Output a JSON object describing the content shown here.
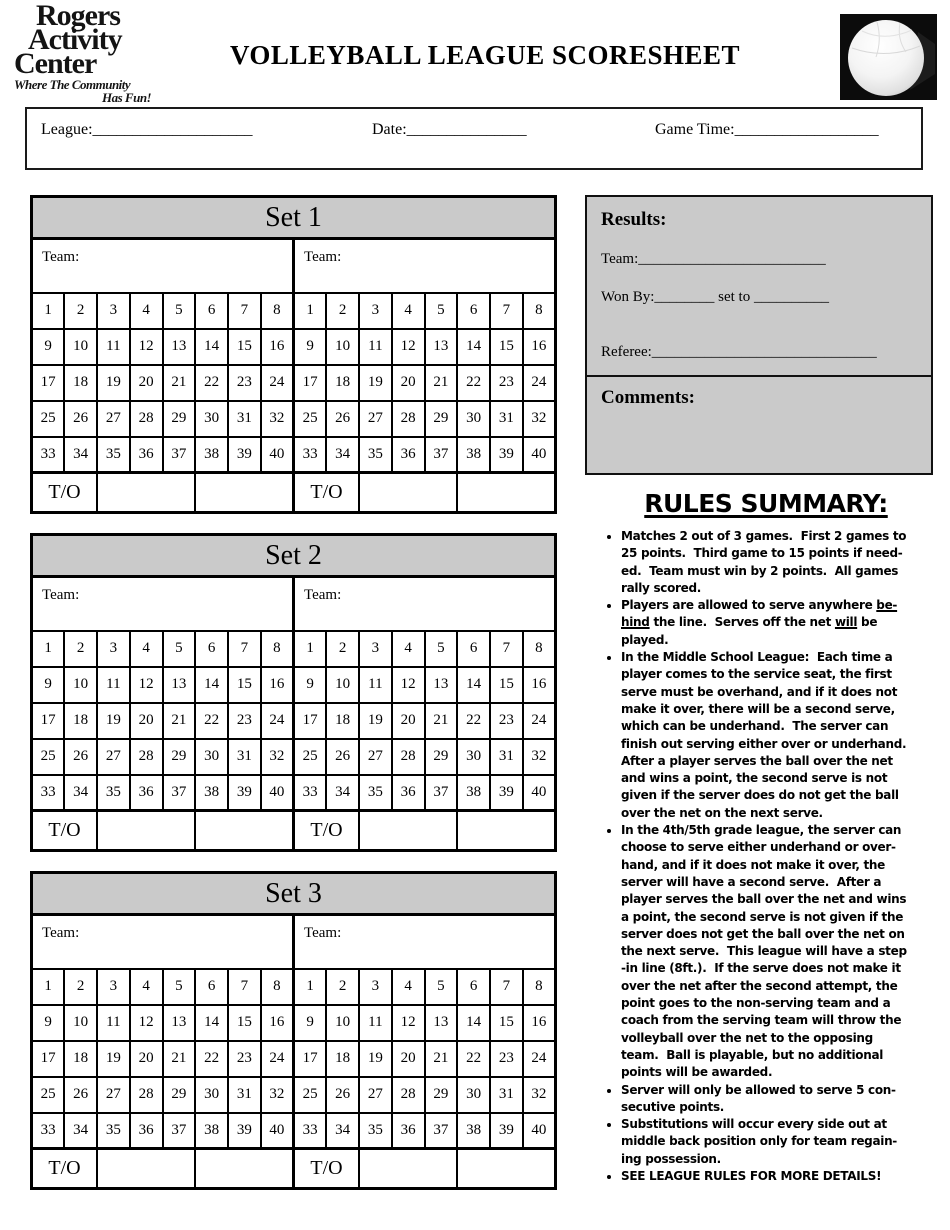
{
  "header": {
    "logo": {
      "line1": "Rogers",
      "line2": "Activity",
      "line3": "Center",
      "tagline1": "Where The Community",
      "tagline2": "Has Fun!"
    },
    "title": "VOLLEYBALL LEAGUE SCORESHEET",
    "volleyball_icon": "volleyball-photo"
  },
  "info_box": {
    "league_label": "League:____________________",
    "date_label": "Date:_______________",
    "game_time_label": "Game Time:__________________"
  },
  "score_grid": {
    "team_label": "Team:",
    "timeout_label": "T/O",
    "rows": [
      [
        1,
        2,
        3,
        4,
        5,
        6,
        7,
        8
      ],
      [
        9,
        10,
        11,
        12,
        13,
        14,
        15,
        16
      ],
      [
        17,
        18,
        19,
        20,
        21,
        22,
        23,
        24
      ],
      [
        25,
        26,
        27,
        28,
        29,
        30,
        31,
        32
      ],
      [
        33,
        34,
        35,
        36,
        37,
        38,
        39,
        40
      ]
    ]
  },
  "sets": [
    {
      "title": "Set 1"
    },
    {
      "title": "Set 2"
    },
    {
      "title": "Set 3"
    }
  ],
  "results": {
    "heading": "Results:",
    "team_line": "Team:_________________________",
    "wonby_line": "Won By:________  set to __________",
    "referee_line": "Referee:______________________________",
    "comments_heading": "Comments:"
  },
  "rules": {
    "heading": "RULES SUMMARY:",
    "bullets": [
      "Matches 2 out of 3 games.  First 2 games to\n25 points.  Third game to 15 points if need-\ned.  Team must win by 2 points.  All games\nrally scored.",
      "Players are allowed to serve anywhere __be-__\n__hind__ the line.  Serves off the net __will__ be\nplayed.",
      "In the Middle School League:  Each time a\nplayer comes to the service seat, the first\nserve must be overhand, and if it does not\nmake it over, there will be a second serve,\nwhich can be underhand.  The server can\nfinish out serving either over or underhand.\nAfter a player serves the ball over the net\nand wins a point, the second serve is not\ngiven if the server does do not get the ball\nover the net on the next serve.",
      "In the 4th/5th grade league, the server can\nchoose to serve either underhand or over-\nhand, and if it does not make it over, the\nserver will have a second serve.  After a\nplayer serves the ball over the net and wins\na point, the second serve is not given if the\nserver does not get the ball over the net on\nthe next serve.  This league will have a step\n-in line (8ft.).  If the serve does not make it\nover the net after the second attempt, the\npoint goes to the non-serving team and a\ncoach from the serving team will throw the\nvolleyball over the net to the opposing\nteam.  Ball is playable, but no additional\npoints will be awarded.",
      "Server will only be allowed to serve 5 con-\nsecutive points.",
      "Substitutions will occur every side out at\nmiddle back position only for team regain-\ning possession.",
      "SEE LEAGUE RULES FOR MORE DETAILS!"
    ]
  },
  "colors": {
    "header_gray": "#cacaca",
    "border_black": "#000000",
    "page_bg": "#ffffff"
  }
}
